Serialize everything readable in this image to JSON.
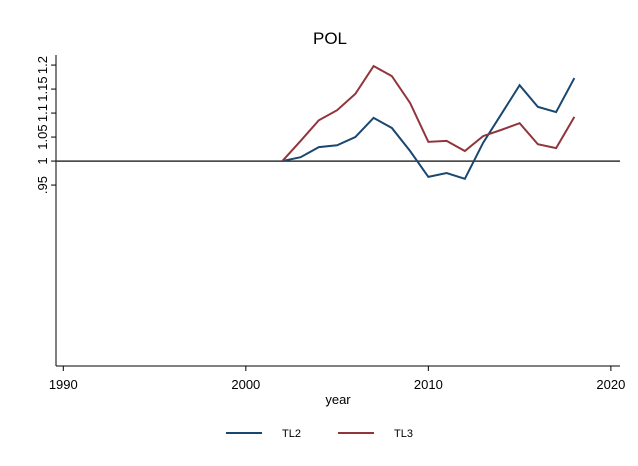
{
  "chart_data": {
    "type": "line",
    "title": "POL",
    "x_label": "year",
    "x": [
      2002,
      2003,
      2004,
      2005,
      2006,
      2007,
      2008,
      2009,
      2010,
      2011,
      2012,
      2013,
      2014,
      2015,
      2016,
      2017,
      2018
    ],
    "series": [
      {
        "name": "TL2",
        "color": "#1a476f",
        "values": [
          1.0,
          1.008,
          1.029,
          1.033,
          1.05,
          1.09,
          1.069,
          1.021,
          0.967,
          0.975,
          0.963,
          1.038,
          1.098,
          1.158,
          1.113,
          1.102,
          1.173
        ]
      },
      {
        "name": "TL3",
        "color": "#90353b",
        "values": [
          1.0,
          1.042,
          1.085,
          1.106,
          1.14,
          1.198,
          1.177,
          1.121,
          1.04,
          1.042,
          1.021,
          1.052,
          1.065,
          1.079,
          1.035,
          1.027,
          1.092
        ]
      }
    ],
    "xlim": [
      1989.6,
      2020.5
    ],
    "xticks": [
      1990,
      2000,
      2010,
      2020
    ],
    "ylim": [
      0.573,
      1.221
    ],
    "yticks": [
      {
        "value": 0.95,
        "label": ".95"
      },
      1,
      1.05,
      1.1,
      1.15,
      1.2
    ],
    "yline": 1,
    "grid": false,
    "legend": "bottom"
  }
}
